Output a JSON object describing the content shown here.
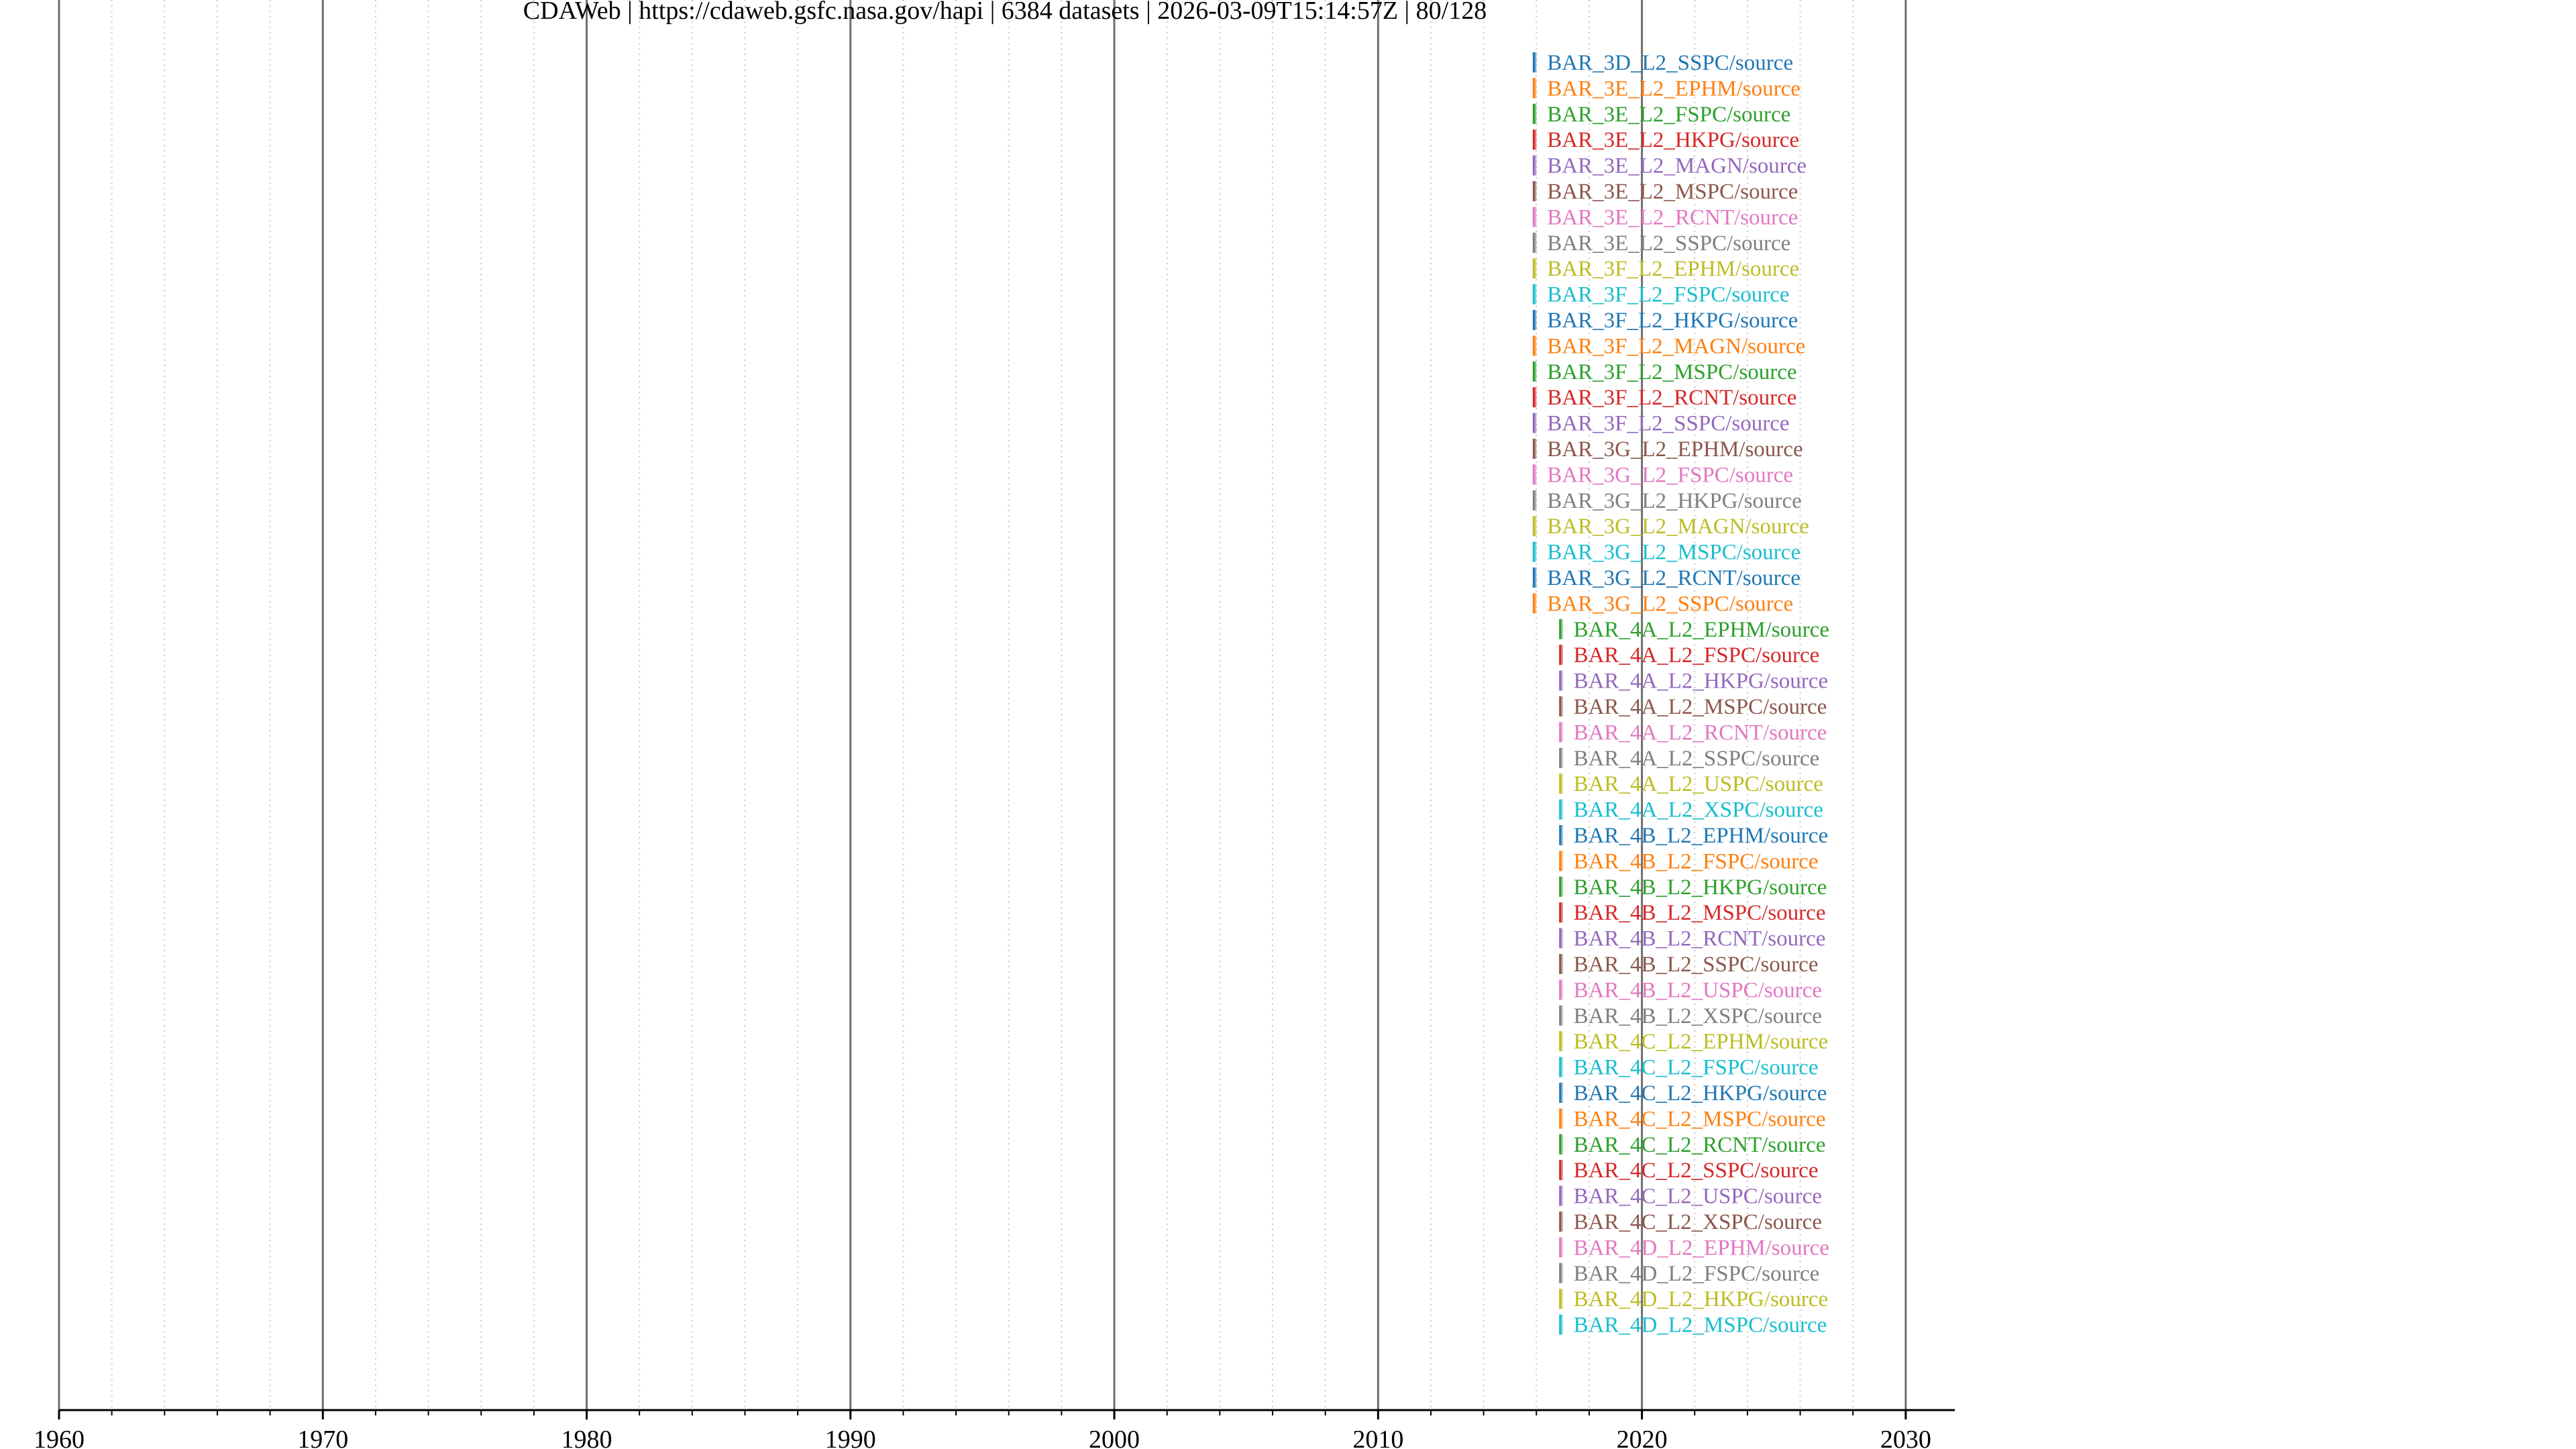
{
  "chart_data": {
    "type": "timeline",
    "title": "CDAWeb | https://cdaweb.gsfc.nasa.gov/hapi | 6384 datasets | 2026-03-09T15:14:57Z | 80/128",
    "x_axis": {
      "min": 1960,
      "max": 2031.25,
      "major_ticks": [
        1960,
        1970,
        1980,
        1990,
        2000,
        2010,
        2020,
        2030
      ],
      "tick_labels": [
        "1960",
        "1970",
        "1980",
        "1990",
        "2000",
        "2010",
        "2020",
        "2030"
      ],
      "minor_step_years": 2,
      "major_grid": true,
      "minor_grid": "dotted"
    },
    "palette": [
      "#1f77b4",
      "#ff7f0e",
      "#2ca02c",
      "#d62728",
      "#9467bd",
      "#8c564b",
      "#e377c2",
      "#7f7f7f",
      "#bcbd22",
      "#17becf"
    ],
    "series": [
      {
        "label": "BAR_3D_L2_SSPC/source",
        "start": 2015.9,
        "end": 2016.0
      },
      {
        "label": "BAR_3E_L2_EPHM/source",
        "start": 2015.9,
        "end": 2016.0
      },
      {
        "label": "BAR_3E_L2_FSPC/source",
        "start": 2015.9,
        "end": 2016.0
      },
      {
        "label": "BAR_3E_L2_HKPG/source",
        "start": 2015.9,
        "end": 2016.0
      },
      {
        "label": "BAR_3E_L2_MAGN/source",
        "start": 2015.9,
        "end": 2016.0
      },
      {
        "label": "BAR_3E_L2_MSPC/source",
        "start": 2015.9,
        "end": 2016.0
      },
      {
        "label": "BAR_3E_L2_RCNT/source",
        "start": 2015.9,
        "end": 2016.0
      },
      {
        "label": "BAR_3E_L2_SSPC/source",
        "start": 2015.9,
        "end": 2016.0
      },
      {
        "label": "BAR_3F_L2_EPHM/source",
        "start": 2015.9,
        "end": 2016.0
      },
      {
        "label": "BAR_3F_L2_FSPC/source",
        "start": 2015.9,
        "end": 2016.0
      },
      {
        "label": "BAR_3F_L2_HKPG/source",
        "start": 2015.9,
        "end": 2016.0
      },
      {
        "label": "BAR_3F_L2_MAGN/source",
        "start": 2015.9,
        "end": 2016.0
      },
      {
        "label": "BAR_3F_L2_MSPC/source",
        "start": 2015.9,
        "end": 2016.0
      },
      {
        "label": "BAR_3F_L2_RCNT/source",
        "start": 2015.9,
        "end": 2016.0
      },
      {
        "label": "BAR_3F_L2_SSPC/source",
        "start": 2015.9,
        "end": 2016.0
      },
      {
        "label": "BAR_3G_L2_EPHM/source",
        "start": 2015.9,
        "end": 2016.0
      },
      {
        "label": "BAR_3G_L2_FSPC/source",
        "start": 2015.9,
        "end": 2016.0
      },
      {
        "label": "BAR_3G_L2_HKPG/source",
        "start": 2015.9,
        "end": 2016.0
      },
      {
        "label": "BAR_3G_L2_MAGN/source",
        "start": 2015.9,
        "end": 2016.0
      },
      {
        "label": "BAR_3G_L2_MSPC/source",
        "start": 2015.9,
        "end": 2016.0
      },
      {
        "label": "BAR_3G_L2_RCNT/source",
        "start": 2015.9,
        "end": 2016.0
      },
      {
        "label": "BAR_3G_L2_SSPC/source",
        "start": 2015.9,
        "end": 2016.0
      },
      {
        "label": "BAR_4A_L2_EPHM/source",
        "start": 2016.9,
        "end": 2017.0
      },
      {
        "label": "BAR_4A_L2_FSPC/source",
        "start": 2016.9,
        "end": 2017.0
      },
      {
        "label": "BAR_4A_L2_HKPG/source",
        "start": 2016.9,
        "end": 2017.0
      },
      {
        "label": "BAR_4A_L2_MSPC/source",
        "start": 2016.9,
        "end": 2017.0
      },
      {
        "label": "BAR_4A_L2_RCNT/source",
        "start": 2016.9,
        "end": 2017.0
      },
      {
        "label": "BAR_4A_L2_SSPC/source",
        "start": 2016.9,
        "end": 2017.0
      },
      {
        "label": "BAR_4A_L2_USPC/source",
        "start": 2016.9,
        "end": 2017.0
      },
      {
        "label": "BAR_4A_L2_XSPC/source",
        "start": 2016.9,
        "end": 2017.0
      },
      {
        "label": "BAR_4B_L2_EPHM/source",
        "start": 2016.9,
        "end": 2017.0
      },
      {
        "label": "BAR_4B_L2_FSPC/source",
        "start": 2016.9,
        "end": 2017.0
      },
      {
        "label": "BAR_4B_L2_HKPG/source",
        "start": 2016.9,
        "end": 2017.0
      },
      {
        "label": "BAR_4B_L2_MSPC/source",
        "start": 2016.9,
        "end": 2017.0
      },
      {
        "label": "BAR_4B_L2_RCNT/source",
        "start": 2016.9,
        "end": 2017.0
      },
      {
        "label": "BAR_4B_L2_SSPC/source",
        "start": 2016.9,
        "end": 2017.0
      },
      {
        "label": "BAR_4B_L2_USPC/source",
        "start": 2016.9,
        "end": 2017.0
      },
      {
        "label": "BAR_4B_L2_XSPC/source",
        "start": 2016.9,
        "end": 2017.0
      },
      {
        "label": "BAR_4C_L2_EPHM/source",
        "start": 2016.9,
        "end": 2017.0
      },
      {
        "label": "BAR_4C_L2_FSPC/source",
        "start": 2016.9,
        "end": 2017.0
      },
      {
        "label": "BAR_4C_L2_HKPG/source",
        "start": 2016.9,
        "end": 2017.0
      },
      {
        "label": "BAR_4C_L2_MSPC/source",
        "start": 2016.9,
        "end": 2017.0
      },
      {
        "label": "BAR_4C_L2_RCNT/source",
        "start": 2016.9,
        "end": 2017.0
      },
      {
        "label": "BAR_4C_L2_SSPC/source",
        "start": 2016.9,
        "end": 2017.0
      },
      {
        "label": "BAR_4C_L2_USPC/source",
        "start": 2016.9,
        "end": 2017.0
      },
      {
        "label": "BAR_4C_L2_XSPC/source",
        "start": 2016.9,
        "end": 2017.0
      },
      {
        "label": "BAR_4D_L2_EPHM/source",
        "start": 2016.9,
        "end": 2017.0
      },
      {
        "label": "BAR_4D_L2_FSPC/source",
        "start": 2016.9,
        "end": 2017.0
      },
      {
        "label": "BAR_4D_L2_HKPG/source",
        "start": 2016.9,
        "end": 2017.0
      },
      {
        "label": "BAR_4D_L2_MSPC/source",
        "start": 2016.9,
        "end": 2017.0
      }
    ]
  }
}
